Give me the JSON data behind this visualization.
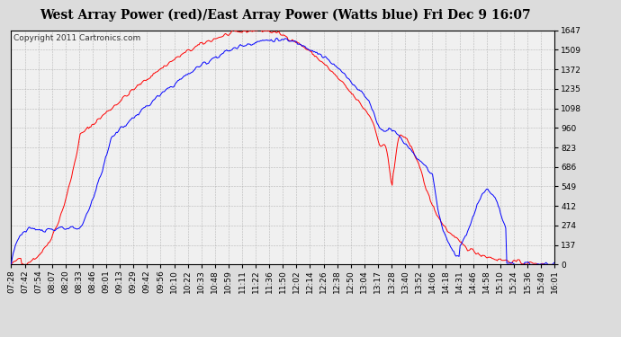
{
  "title": "West Array Power (red)/East Array Power (Watts blue) Fri Dec 9 16:07",
  "copyright": "Copyright 2011 Cartronics.com",
  "background_color": "#dcdcdc",
  "plot_bg_color": "#f0f0f0",
  "yticks": [
    0.0,
    137.2,
    274.4,
    411.6,
    548.9,
    686.1,
    823.3,
    960.5,
    1097.7,
    1234.9,
    1372.2,
    1509.4,
    1646.6
  ],
  "ymax": 1646.6,
  "ymin": 0.0,
  "x_labels": [
    "07:28",
    "07:42",
    "07:54",
    "08:07",
    "08:20",
    "08:33",
    "08:46",
    "09:01",
    "09:13",
    "09:29",
    "09:42",
    "09:56",
    "10:10",
    "10:22",
    "10:33",
    "10:48",
    "10:59",
    "11:11",
    "11:22",
    "11:36",
    "11:50",
    "12:02",
    "12:14",
    "12:26",
    "12:38",
    "12:50",
    "13:04",
    "13:17",
    "13:28",
    "13:40",
    "13:52",
    "14:06",
    "14:18",
    "14:31",
    "14:46",
    "14:58",
    "15:10",
    "15:24",
    "15:36",
    "15:49",
    "16:01"
  ],
  "red_color": "#ff0000",
  "blue_color": "#0000ff",
  "grid_color": "#aaaaaa",
  "title_fontsize": 10,
  "copyright_fontsize": 6.5,
  "tick_fontsize": 6.5
}
